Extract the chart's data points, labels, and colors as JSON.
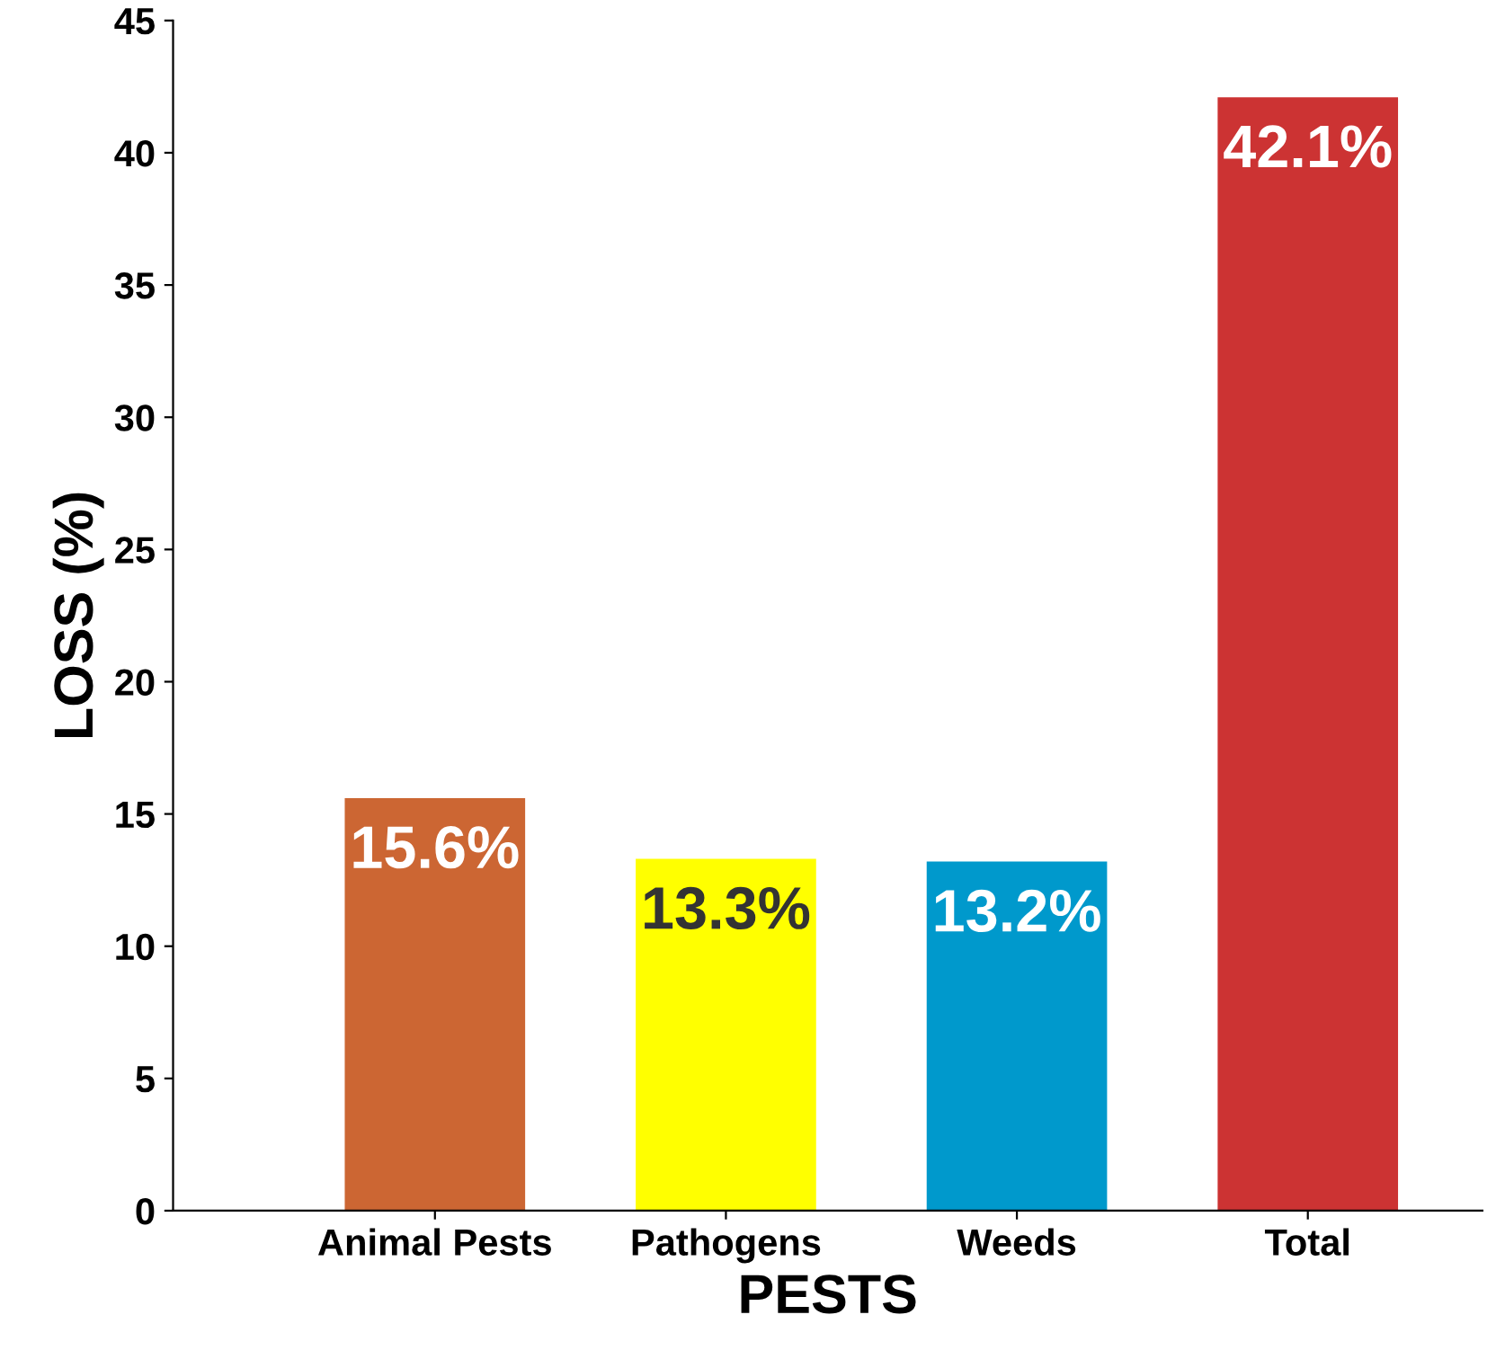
{
  "chart_data": {
    "type": "bar",
    "xlabel": "PESTS",
    "ylabel": "LOSS (%)",
    "categories": [
      "Animal Pests",
      "Pathogens",
      "Weeds",
      "Total"
    ],
    "values": [
      15.6,
      13.3,
      13.2,
      42.1
    ],
    "colors": [
      "#cc6633",
      "#ffff00",
      "#0099cc",
      "#cc3333"
    ],
    "ylim": [
      0,
      45
    ],
    "yticks": [
      0,
      5,
      10,
      15,
      20,
      25,
      30,
      35,
      40,
      45
    ],
    "data_labels": true,
    "value_labels": [
      "15.6%",
      "13.3%",
      "13.2%",
      "42.1%"
    ],
    "grid": false,
    "legend": false
  }
}
